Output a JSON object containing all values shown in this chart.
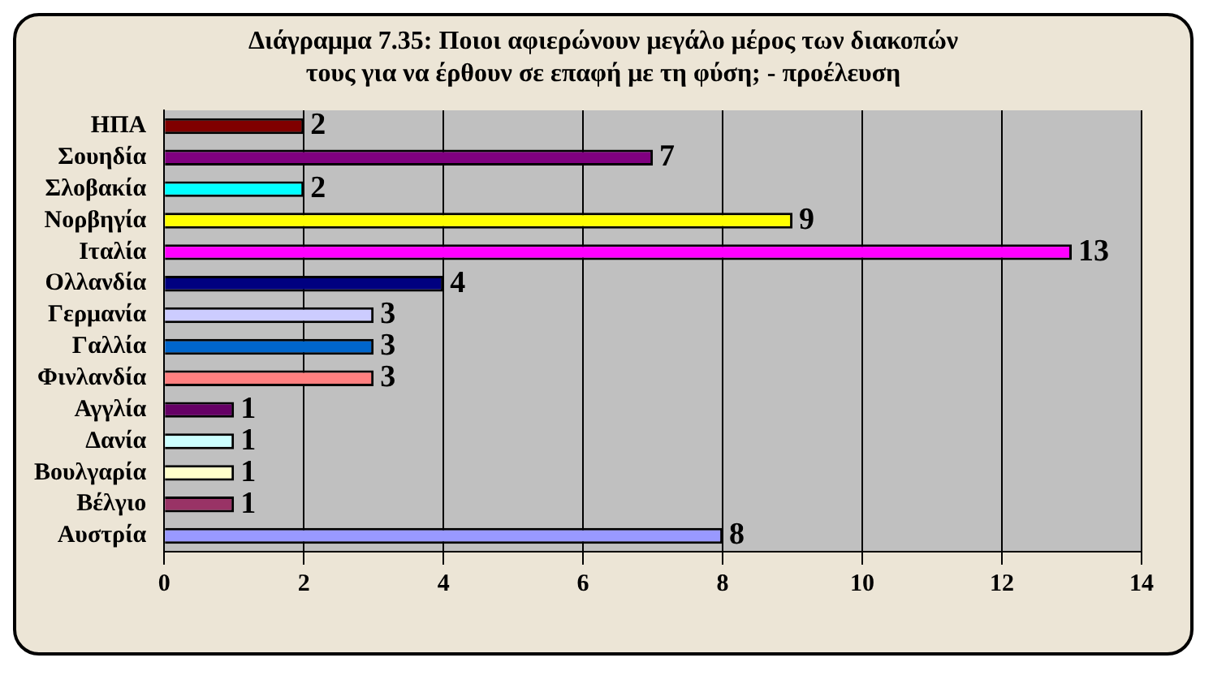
{
  "chart_data": {
    "type": "bar",
    "orientation": "horizontal",
    "title": "Διάγραμμα 7.35: Ποιοι αφιερώνουν μεγάλο μέρος των διακοπών τους για να έρθουν σε επαφή με τη φύση; - προέλευση",
    "categories": [
      "ΗΠΑ",
      "Σουηδία",
      "Σλοβακία",
      "Νορβηγία",
      "Ιταλία",
      "Ολλανδία",
      "Γερμανία",
      "Γαλλία",
      "Φινλανδία",
      "Αγγλία",
      "Δανία",
      "Βουλγαρία",
      "Βέλγιο",
      "Αυστρία"
    ],
    "values": [
      2,
      7,
      2,
      9,
      13,
      4,
      3,
      3,
      3,
      1,
      1,
      1,
      1,
      8
    ],
    "colors": [
      "#800000",
      "#800080",
      "#00ffff",
      "#ffff00",
      "#ff00ff",
      "#000080",
      "#ccccff",
      "#0066cc",
      "#ff8080",
      "#660066",
      "#ccffff",
      "#ffffcc",
      "#993366",
      "#9999ff"
    ],
    "xlim": [
      0,
      14
    ],
    "xticks": [
      0,
      2,
      4,
      6,
      8,
      10,
      12,
      14
    ],
    "grid": "x",
    "data_labels": true
  }
}
